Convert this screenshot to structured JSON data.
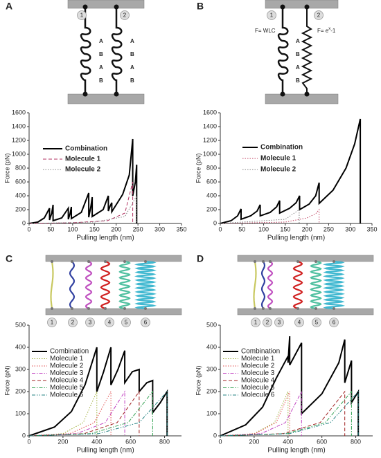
{
  "panel_labels": [
    "A",
    "B",
    "C",
    "D"
  ],
  "diagrams": [
    {
      "markers": [
        "1",
        "2"
      ],
      "letters": [
        [
          "A",
          "B",
          "A",
          "B"
        ],
        [
          "A",
          "B",
          "A",
          "B"
        ]
      ]
    },
    {
      "markers": [
        "1",
        "2"
      ],
      "letters": [
        [
          "A",
          "B",
          "A",
          "B"
        ]
      ],
      "wlc": "F= WLC",
      "exp": {
        "base": "F= e",
        "sup": "x",
        "tail": "-1"
      }
    },
    {
      "markers": [
        "1",
        "2",
        "3",
        "4",
        "5",
        "6"
      ]
    },
    {
      "markers": [
        "1",
        "2",
        "3",
        "4",
        "5",
        "6"
      ]
    }
  ],
  "chart_data": [
    {
      "type": "line",
      "xlabel": "Pulling length (nm)",
      "ylabel": "Force (pN)",
      "xlim": [
        0,
        350
      ],
      "ylim": [
        0,
        1600
      ],
      "xticks": [
        0,
        50,
        100,
        150,
        200,
        250,
        300,
        350
      ],
      "yticks": [
        0,
        200,
        400,
        600,
        800,
        1000,
        1200,
        1400,
        1600
      ],
      "legend": "upper left",
      "series": [
        {
          "name": "Combination",
          "color": "#000000",
          "style": "solid",
          "width": 2,
          "x": [
            0,
            20,
            35,
            47,
            47,
            52,
            55,
            55,
            75,
            90,
            90,
            94,
            97,
            97,
            120,
            137,
            137,
            142,
            145,
            145,
            170,
            182,
            182,
            186,
            190,
            190,
            215,
            230,
            238,
            238,
            244,
            247,
            247
          ],
          "values": [
            0,
            20,
            80,
            220,
            50,
            150,
            270,
            40,
            80,
            220,
            60,
            140,
            240,
            70,
            160,
            440,
            90,
            250,
            380,
            100,
            200,
            400,
            180,
            250,
            300,
            170,
            420,
            700,
            1220,
            400,
            600,
            850,
            0
          ]
        },
        {
          "name": "Molecule 1",
          "color": "#b03060",
          "style": "dashed",
          "width": 1,
          "x": [
            0,
            100,
            180,
            220,
            238,
            238
          ],
          "values": [
            0,
            10,
            40,
            150,
            600,
            0
          ]
        },
        {
          "name": "Molecule 2",
          "color": "#808080",
          "style": "dotted",
          "width": 1,
          "x": [
            0,
            150,
            220,
            247,
            247
          ],
          "values": [
            0,
            20,
            100,
            400,
            0
          ]
        }
      ]
    },
    {
      "type": "line",
      "xlabel": "Pulling length (nm)",
      "ylabel": "Force (pN)",
      "xlim": [
        0,
        350
      ],
      "ylim": [
        0,
        1600
      ],
      "xticks": [
        0,
        50,
        100,
        150,
        200,
        250,
        300,
        350
      ],
      "yticks": [
        0,
        200,
        400,
        600,
        800,
        1000,
        1200,
        1400,
        1600
      ],
      "legend": "upper left",
      "series": [
        {
          "name": "Combination",
          "color": "#000000",
          "style": "solid",
          "width": 2,
          "x": [
            0,
            25,
            40,
            48,
            48,
            70,
            85,
            92,
            92,
            115,
            130,
            137,
            137,
            160,
            175,
            183,
            183,
            205,
            220,
            228,
            228,
            260,
            290,
            310,
            323,
            323
          ],
          "values": [
            0,
            40,
            110,
            210,
            60,
            110,
            180,
            270,
            110,
            160,
            240,
            330,
            150,
            220,
            300,
            400,
            200,
            280,
            400,
            590,
            290,
            480,
            800,
            1150,
            1510,
            0
          ]
        },
        {
          "name": "Molecule 1",
          "color": "#c04060",
          "style": "dotted",
          "width": 1,
          "x": [
            0,
            150,
            200,
            220,
            228,
            228
          ],
          "values": [
            0,
            20,
            80,
            140,
            200,
            0
          ]
        },
        {
          "name": "Molecule 2",
          "color": "#808080",
          "style": "dotted",
          "width": 1,
          "x": [
            0,
            150,
            182,
            182
          ],
          "values": [
            0,
            60,
            200,
            0
          ]
        }
      ]
    },
    {
      "type": "line",
      "xlabel": "Pulling length (nm)",
      "ylabel": "Force (pN)",
      "xlim": [
        0,
        900
      ],
      "ylim": [
        0,
        500
      ],
      "xticks": [
        0,
        200,
        400,
        600,
        800
      ],
      "yticks": [
        0,
        100,
        200,
        300,
        400,
        500
      ],
      "legend": "upper left",
      "series": [
        {
          "name": "Combination",
          "color": "#000000",
          "style": "solid",
          "width": 2,
          "x": [
            0,
            150,
            250,
            330,
            400,
            400,
            440,
            483,
            483,
            525,
            565,
            565,
            610,
            650,
            650,
            695,
            730,
            730,
            775,
            815,
            815
          ],
          "values": [
            0,
            40,
            110,
            230,
            400,
            200,
            290,
            400,
            230,
            300,
            385,
            240,
            290,
            300,
            200,
            240,
            250,
            105,
            150,
            200,
            0
          ]
        },
        {
          "name": "Molecule 1",
          "color": "#9aaa30",
          "style": "dotted",
          "width": 1,
          "x": [
            0,
            200,
            320,
            400,
            400
          ],
          "values": [
            0,
            10,
            60,
            200,
            0
          ]
        },
        {
          "name": "Molecule 2",
          "color": "#e04848",
          "style": "dotted",
          "width": 1,
          "x": [
            0,
            240,
            385,
            483,
            483
          ],
          "values": [
            0,
            10,
            60,
            200,
            0
          ]
        },
        {
          "name": "Molecule 3",
          "color": "#c040c0",
          "style": "dashdot",
          "width": 1,
          "x": [
            0,
            280,
            450,
            565,
            565
          ],
          "values": [
            0,
            10,
            60,
            200,
            0
          ]
        },
        {
          "name": "Molecule 4",
          "color": "#a02020",
          "style": "dashed",
          "width": 1,
          "x": [
            0,
            325,
            520,
            650,
            650
          ],
          "values": [
            0,
            10,
            60,
            200,
            0
          ]
        },
        {
          "name": "Molecule 5",
          "color": "#30a050",
          "style": "dashdot",
          "width": 1,
          "x": [
            0,
            365,
            585,
            730,
            730
          ],
          "values": [
            0,
            10,
            60,
            200,
            0
          ]
        },
        {
          "name": "Molecule 6",
          "color": "#208080",
          "style": "dashdotdot",
          "width": 1,
          "x": [
            0,
            410,
            650,
            815,
            815
          ],
          "values": [
            0,
            10,
            60,
            200,
            0
          ]
        }
      ]
    },
    {
      "type": "line",
      "xlabel": "Pulling length (nm)",
      "ylabel": "Force (pN)",
      "xlim": [
        0,
        900
      ],
      "ylim": [
        0,
        500
      ],
      "xticks": [
        0,
        200,
        400,
        600,
        800
      ],
      "yticks": [
        0,
        100,
        200,
        300,
        400,
        500
      ],
      "legend": "upper left",
      "series": [
        {
          "name": "Combination",
          "color": "#000000",
          "style": "solid",
          "width": 2,
          "x": [
            0,
            150,
            250,
            330,
            400,
            400,
            410,
            410,
            480,
            480,
            600,
            700,
            735,
            735,
            775,
            775,
            815,
            815
          ],
          "values": [
            0,
            50,
            130,
            260,
            360,
            330,
            450,
            320,
            420,
            100,
            190,
            330,
            435,
            240,
            340,
            150,
            200,
            0
          ]
        },
        {
          "name": "Molecule 1",
          "color": "#9aaa30",
          "style": "dotted",
          "width": 1,
          "x": [
            0,
            200,
            320,
            400,
            400
          ],
          "values": [
            0,
            10,
            60,
            200,
            0
          ]
        },
        {
          "name": "Molecule 2",
          "color": "#e04848",
          "style": "dotted",
          "width": 1,
          "x": [
            0,
            205,
            330,
            410,
            410
          ],
          "values": [
            0,
            10,
            60,
            200,
            0
          ]
        },
        {
          "name": "Molecule 3",
          "color": "#c040c0",
          "style": "dashdot",
          "width": 1,
          "x": [
            0,
            240,
            385,
            480,
            480
          ],
          "values": [
            0,
            10,
            60,
            200,
            0
          ]
        },
        {
          "name": "Molecule 4",
          "color": "#a02020",
          "style": "dashed",
          "width": 1,
          "x": [
            0,
            370,
            590,
            735,
            735
          ],
          "values": [
            0,
            10,
            60,
            200,
            0
          ]
        },
        {
          "name": "Molecule 5",
          "color": "#30a050",
          "style": "dashdot",
          "width": 1,
          "x": [
            0,
            390,
            620,
            775,
            775
          ],
          "values": [
            0,
            10,
            60,
            200,
            0
          ]
        },
        {
          "name": "Molecule 6",
          "color": "#208080",
          "style": "dashdotdot",
          "width": 1,
          "x": [
            0,
            410,
            650,
            815,
            815
          ],
          "values": [
            0,
            10,
            60,
            200,
            0
          ]
        }
      ]
    }
  ]
}
